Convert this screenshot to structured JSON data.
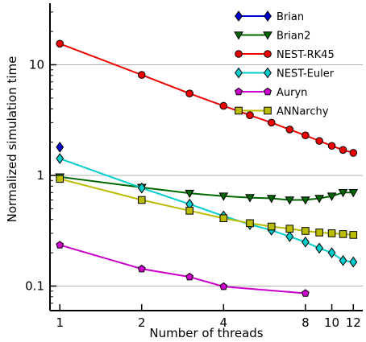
{
  "chart_data": {
    "type": "line",
    "xlabel": "Number of threads",
    "ylabel": "Normalized simulation time",
    "x_scale": "log",
    "y_scale": "log",
    "xlim": [
      0.92,
      13
    ],
    "ylim": [
      0.06,
      36
    ],
    "x_ticks": [
      {
        "value": 1,
        "label": "1"
      },
      {
        "value": 2,
        "label": "2"
      },
      {
        "value": 4,
        "label": "4"
      },
      {
        "value": 8,
        "label": "8"
      },
      {
        "value": 10,
        "label": "10"
      },
      {
        "value": 12,
        "label": "12"
      }
    ],
    "y_ticks": [
      {
        "value": 0.1,
        "label": "0.1"
      },
      {
        "value": 1,
        "label": "1"
      },
      {
        "value": 10,
        "label": "10"
      }
    ],
    "grid": "horizontal-major",
    "legend_position": "top-right",
    "series": [
      {
        "name": "Brian",
        "color": "#0000cc",
        "marker": "diamond",
        "x": [
          1
        ],
        "y": [
          1.8
        ]
      },
      {
        "name": "Brian2",
        "color": "#006600",
        "marker": "triangle-down",
        "x": [
          1,
          2,
          3,
          4,
          5,
          6,
          7,
          8,
          9,
          10,
          11,
          12
        ],
        "y": [
          0.97,
          0.78,
          0.69,
          0.65,
          0.63,
          0.62,
          0.6,
          0.6,
          0.62,
          0.65,
          0.7,
          0.7
        ]
      },
      {
        "name": "NEST-RK45",
        "color": "#ee0000",
        "marker": "circle",
        "x": [
          1,
          2,
          3,
          4,
          5,
          6,
          7,
          8,
          9,
          10,
          11,
          12
        ],
        "y": [
          15.5,
          8.1,
          5.5,
          4.25,
          3.5,
          3.0,
          2.6,
          2.3,
          2.05,
          1.85,
          1.7,
          1.6
        ]
      },
      {
        "name": "NEST-Euler",
        "color": "#00cccc",
        "marker": "diamond",
        "x": [
          1,
          2,
          3,
          4,
          5,
          6,
          7,
          8,
          9,
          10,
          11,
          12
        ],
        "y": [
          1.42,
          0.77,
          0.55,
          0.43,
          0.36,
          0.32,
          0.28,
          0.25,
          0.22,
          0.2,
          0.17,
          0.165
        ]
      },
      {
        "name": "Auryn",
        "color": "#cc00cc",
        "marker": "pentagon",
        "x": [
          1,
          2,
          3,
          4,
          8
        ],
        "y": [
          0.235,
          0.143,
          0.121,
          0.099,
          0.086
        ]
      },
      {
        "name": "ANNarchy",
        "color": "#bbbb00",
        "marker": "square",
        "x": [
          1,
          2,
          3,
          4,
          5,
          6,
          7,
          8,
          9,
          10,
          11,
          12
        ],
        "y": [
          0.93,
          0.6,
          0.48,
          0.41,
          0.37,
          0.345,
          0.33,
          0.315,
          0.305,
          0.3,
          0.295,
          0.29
        ]
      }
    ]
  }
}
